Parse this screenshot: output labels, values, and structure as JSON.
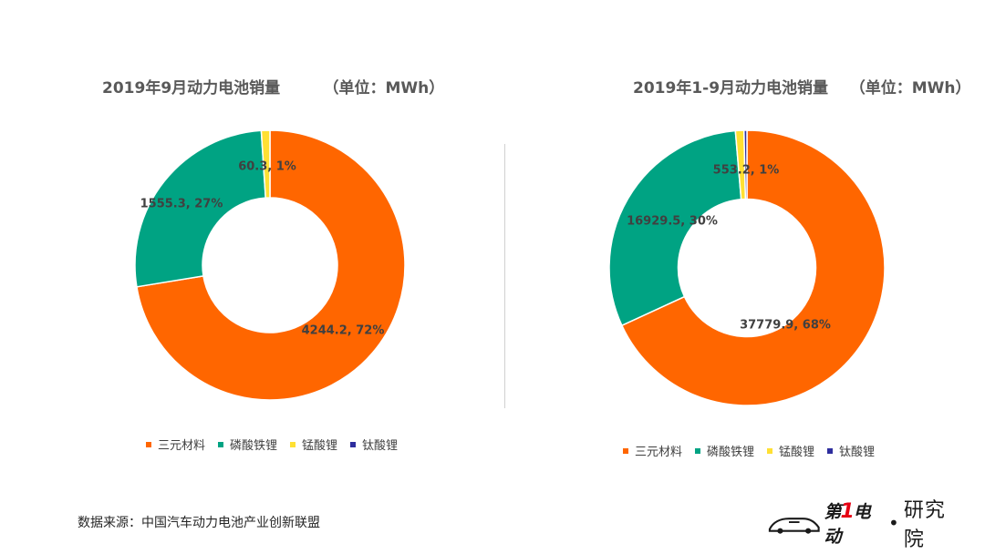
{
  "chart_data": [
    {
      "type": "pie",
      "donut": true,
      "title": "2019年9月动力电池销量        （单位：MWh）",
      "categories": [
        "三元材料",
        "磷酸铁锂",
        "锰酸锂",
        "钛酸锂"
      ],
      "values": [
        4244.2,
        1555.3,
        60.3,
        0
      ],
      "data_labels": [
        "4244.2, 72%",
        "1555.3, 27%",
        "60.3, 1%",
        ""
      ],
      "legend": "bottom"
    },
    {
      "type": "pie",
      "donut": true,
      "title": "2019年1-9月动力电池销量    （单位：MWh）",
      "categories": [
        "三元材料",
        "磷酸铁锂",
        "锰酸锂",
        "钛酸锂"
      ],
      "values": [
        37779.9,
        16929.5,
        553.2,
        190
      ],
      "data_labels": [
        "37779.9, 68%",
        "16929.5, 30%",
        "553.2, 1%",
        ""
      ],
      "legend": "bottom"
    }
  ],
  "colors": [
    "#FF6600",
    "#00A383",
    "#FFE033",
    "#2E2E9E"
  ],
  "source": "数据来源：中国汽车动力电池产业创新联盟",
  "logo": {
    "brand_prefix": "第",
    "brand_number": "1",
    "brand_suffix": "电动",
    "dot": "•",
    "sub": "研究院",
    "icon": "car-logo-icon"
  }
}
